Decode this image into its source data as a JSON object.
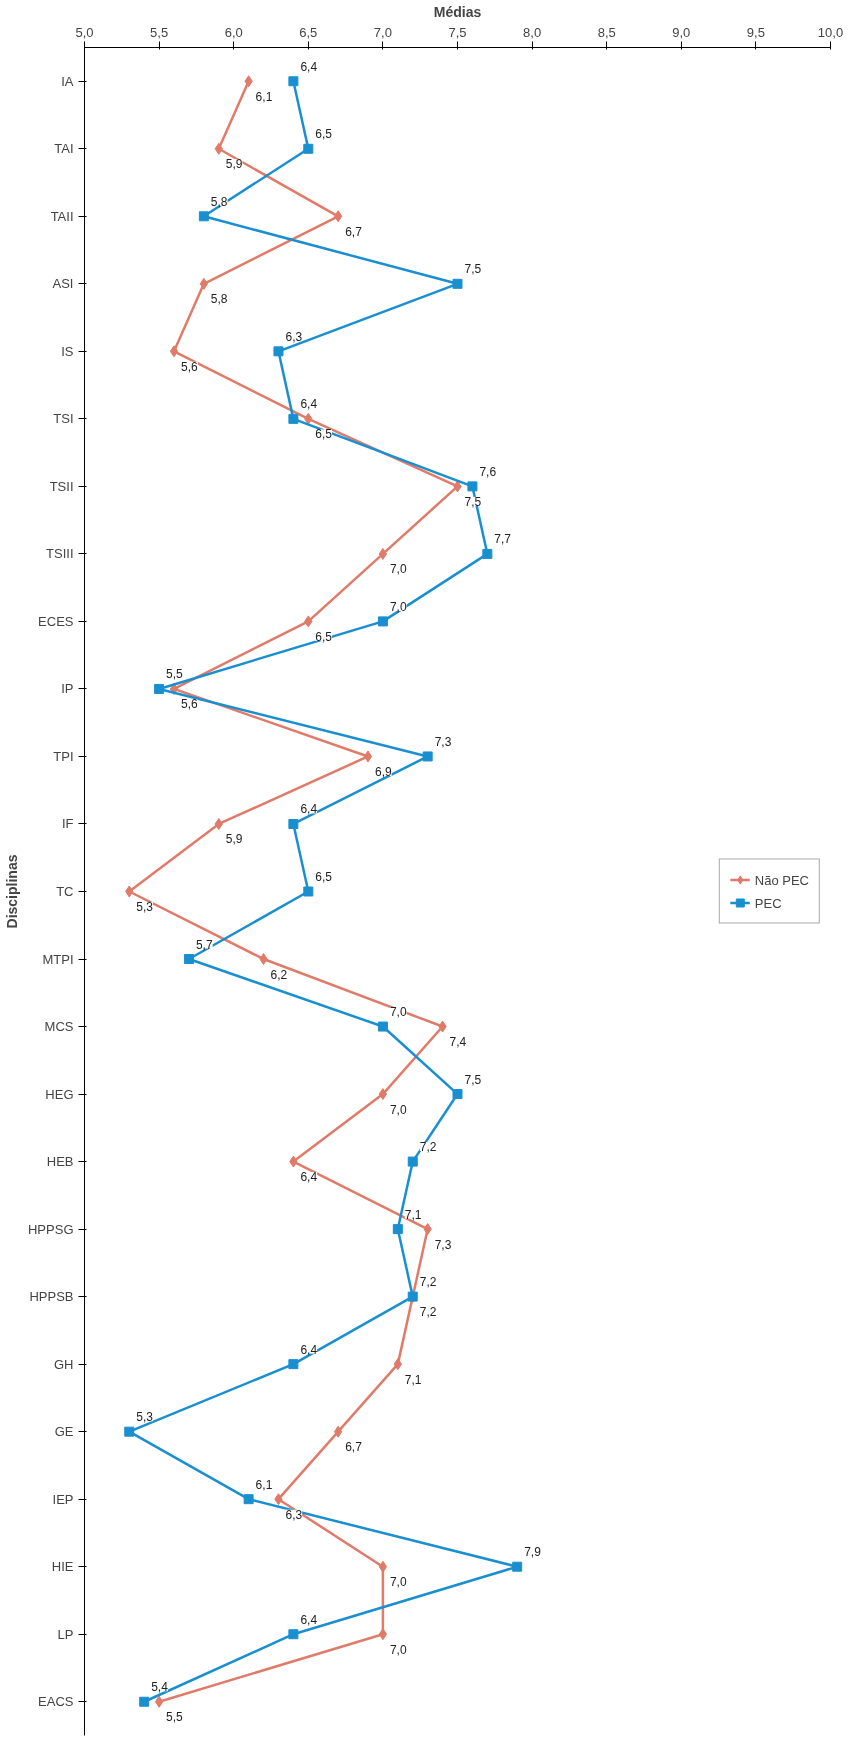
{
  "chart_data": {
    "type": "line",
    "orientation": "horizontal",
    "xlabel": "Médias",
    "ylabel": "Disciplinas",
    "categories": [
      "IA",
      "TAI",
      "TAII",
      "ASI",
      "IS",
      "TSI",
      "TSII",
      "TSIII",
      "ECES",
      "IP",
      "TPI",
      "IF",
      "TC",
      "MTPI",
      "MCS",
      "HEG",
      "HEB",
      "HPPSG",
      "HPPSB",
      "GH",
      "GE",
      "IEP",
      "HIE",
      "LP",
      "EACS"
    ],
    "series": [
      {
        "name": "Não PEC",
        "color": "#e07b6a",
        "marker": "diamond",
        "values": [
          6.1,
          5.9,
          6.7,
          5.8,
          5.6,
          6.5,
          7.5,
          7.0,
          6.5,
          5.6,
          6.9,
          5.9,
          5.3,
          6.2,
          7.4,
          7.0,
          6.4,
          7.3,
          7.2,
          7.1,
          6.7,
          6.3,
          7.0,
          7.0,
          5.5
        ],
        "value_labels": [
          "6,1",
          "5,9",
          "6,7",
          "5,8",
          "5,6",
          "6,5",
          "7,5",
          "7,0",
          "6,5",
          "5,6",
          "6,9",
          "5,9",
          "5,3",
          "6,2",
          "7,4",
          "7,0",
          "6,4",
          "7,3",
          "7,2",
          "7,1",
          "6,7",
          "6,3",
          "7,0",
          "7,0",
          "5,5"
        ]
      },
      {
        "name": "PEC",
        "color": "#1a8fd0",
        "marker": "square",
        "values": [
          6.4,
          6.5,
          5.8,
          7.5,
          6.3,
          6.4,
          7.6,
          7.7,
          7.0,
          5.5,
          7.3,
          6.4,
          6.5,
          5.7,
          7.0,
          7.5,
          7.2,
          7.1,
          7.2,
          6.4,
          5.3,
          6.1,
          7.9,
          6.4,
          5.4
        ],
        "value_labels": [
          "6,4",
          "6,5",
          "5,8",
          "7,5",
          "6,3",
          "6,4",
          "7,6",
          "7,7",
          "7,0",
          "5,5",
          "7,3",
          "6,4",
          "6,5",
          "5,7",
          "7,0",
          "7,5",
          "7,2",
          "7,1",
          "7,2",
          "6,4",
          "5,3",
          "6,1",
          "7,9",
          "6,4",
          "5,4"
        ]
      }
    ],
    "xlim": [
      5.0,
      10.0
    ],
    "xticks": [
      {
        "value": 5.0,
        "label": "5,0"
      },
      {
        "value": 5.5,
        "label": "5,5"
      },
      {
        "value": 6.0,
        "label": "6,0"
      },
      {
        "value": 6.5,
        "label": "6,5"
      },
      {
        "value": 7.0,
        "label": "7,0"
      },
      {
        "value": 7.5,
        "label": "7,5"
      },
      {
        "value": 8.0,
        "label": "8,0"
      },
      {
        "value": 8.5,
        "label": "8,5"
      },
      {
        "value": 9.0,
        "label": "9,0"
      },
      {
        "value": 9.5,
        "label": "9,5"
      },
      {
        "value": 10.0,
        "label": "10,0"
      }
    ],
    "grid": false,
    "legend": "right",
    "line_style": "solid"
  }
}
